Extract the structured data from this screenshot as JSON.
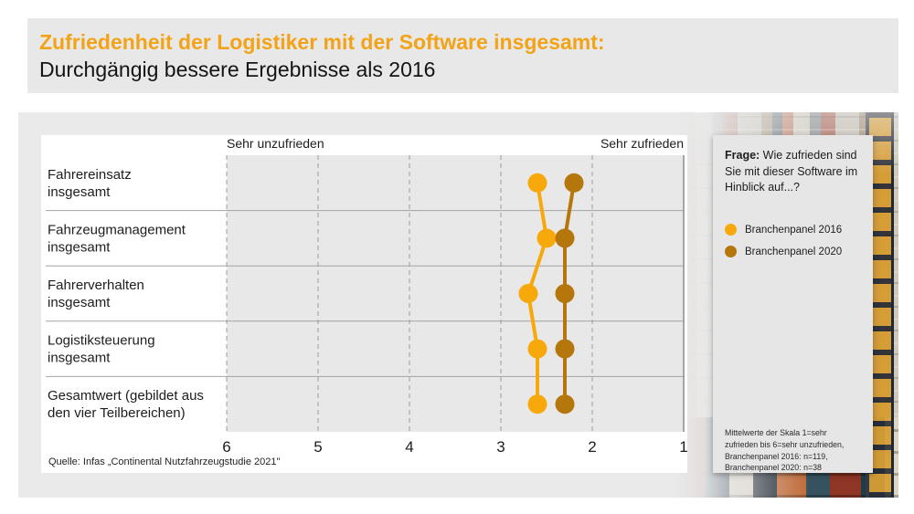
{
  "header": {
    "title": "Zufriedenheit der Logistiker mit der Software insgesamt:",
    "subtitle": "Durchgängig bessere Ergebnisse als 2016"
  },
  "colors": {
    "title_orange": "#F2A317",
    "series_2016": "#F7A80B",
    "series_2020": "#B5760B",
    "plot_band": "#e8e8e8",
    "gridline": "#9b9b9b"
  },
  "chart_data": {
    "type": "scatter",
    "subtype": "dot-plot (dumbbell, two periods per category, connected vertically per series)",
    "categories": [
      [
        "Fahrereinsatz",
        "insgesamt"
      ],
      [
        "Fahrzeugmanagement",
        "insgesamt"
      ],
      [
        "Fahrerverhalten",
        "insgesamt"
      ],
      [
        "Logistiksteuerung",
        "insgesamt"
      ],
      [
        "Gesamtwert (gebildet aus",
        "den vier Teilbereichen)"
      ]
    ],
    "series": [
      {
        "name": "Branchenpanel 2016",
        "color": "#F7A80B",
        "values": [
          2.6,
          2.5,
          2.7,
          2.6,
          2.6
        ]
      },
      {
        "name": "Branchenpanel 2020",
        "color": "#B5760B",
        "values": [
          2.2,
          2.3,
          2.3,
          2.3,
          2.3
        ]
      }
    ],
    "axis": {
      "min": 1,
      "max": 6,
      "reversed": true,
      "tick_labels": [
        "6",
        "5",
        "4",
        "3",
        "2",
        "1"
      ],
      "left_label": "Sehr unzufrieden",
      "right_label": "Sehr zufrieden",
      "grid": "vertical dashed lines at each tick, solid line at value 1"
    },
    "legend_position": "right side panel",
    "title": "Zufriedenheit der Logistiker mit der Software insgesamt"
  },
  "source": "Quelle: Infas „Continental Nutzfahrzeugstudie 2021\"",
  "panel": {
    "question_label": "Frage:",
    "question_rest": " Wie zufrieden sind Sie mit dieser Software im Hinblick auf...?",
    "legend": [
      {
        "label": "Branchenpanel 2016",
        "color": "#F7A80B"
      },
      {
        "label": "Branchenpanel 2020",
        "color": "#B5760B"
      }
    ],
    "footnote": "Mittelwerte der Skala 1=sehr zufrieden bis 6=sehr unzufrieden, Branchenpanel 2016: n=119, Branchenpanel 2020: n=38"
  }
}
